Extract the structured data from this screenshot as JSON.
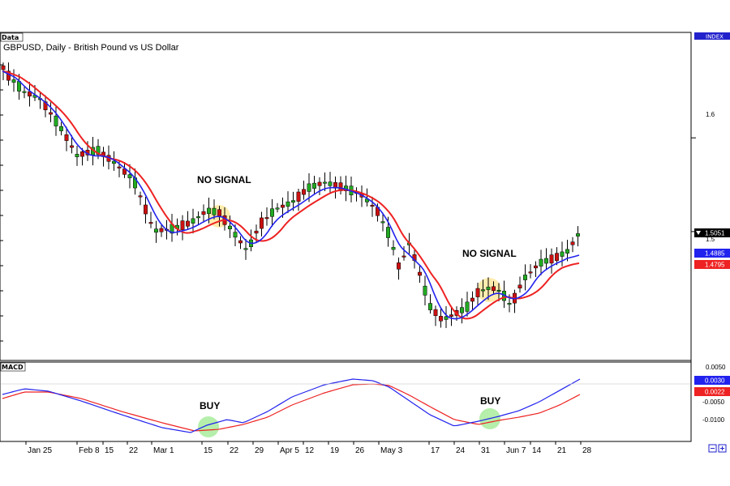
{
  "panels": {
    "main_tag": "Data",
    "macd_tag": "MACD",
    "index_tag": "INDEX"
  },
  "chart_data": [
    {
      "type": "candlestick",
      "title": "GBPUSD, Daily - British Pound vs US Dollar",
      "ylim": [
        1.3625,
        1.7125
      ],
      "y_ticks": [
        1.6,
        1.5
      ],
      "x_ticks": [
        "Jan 25",
        "Feb 8",
        "15",
        "22",
        "Mar 1",
        "15",
        "22",
        "29",
        "Apr 5",
        "12",
        "19",
        "26",
        "May 3",
        "17",
        "24",
        "31",
        "Jun 7",
        "14",
        "21",
        "28"
      ],
      "price_labels": [
        {
          "value": "1.5051",
          "color": "#ffffff"
        },
        {
          "value": "1.4885",
          "color": "#2222ee"
        },
        {
          "value": "1.4795",
          "color": "#ee2222"
        }
      ],
      "series": [
        {
          "type": "ema",
          "color": "#2222ee"
        },
        {
          "type": "ema",
          "color": "#ee2222"
        }
      ],
      "annotations": [
        "NO SIGNAL",
        "NO SIGNAL"
      ]
    },
    {
      "type": "line",
      "title": "MACD",
      "ylim": [
        -0.015,
        0.006
      ],
      "y_ticks": [
        "0.0050",
        "-0.0050",
        "-0.0100"
      ],
      "value_labels": [
        {
          "value": "0.0030",
          "color": "#2222ee"
        },
        {
          "value": "0.0022",
          "color": "#ee2222"
        }
      ],
      "series": [
        {
          "color": "#2222ee"
        },
        {
          "color": "#ee2222"
        }
      ],
      "annotations": [
        "BUY",
        "BUY"
      ]
    }
  ]
}
